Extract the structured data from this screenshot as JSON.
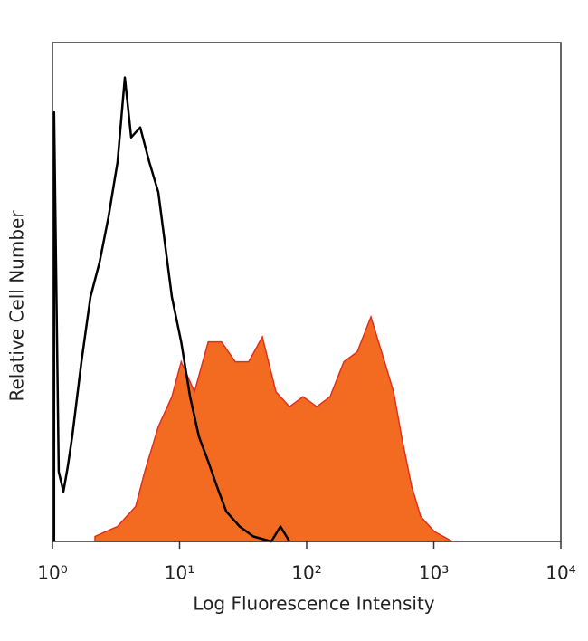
{
  "chart_data": {
    "type": "histogram-overlay",
    "x_label": "Log Fluorescence Intensity",
    "y_label": "Relative Cell Number",
    "log_x": true,
    "xlim": [
      1,
      10000
    ],
    "xticks": [
      {
        "value": 1,
        "label": "10⁰"
      },
      {
        "value": 10,
        "label": "10¹"
      },
      {
        "value": 100,
        "label": "10²"
      },
      {
        "value": 1000,
        "label": "10³"
      },
      {
        "value": 10000,
        "label": "10⁴"
      }
    ],
    "ylim": [
      0,
      100
    ],
    "series": [
      {
        "style": "area",
        "color": "#f26b21",
        "edge_color": "#e0301e",
        "x": [
          2.16,
          3.25,
          4.52,
          5.32,
          6.8,
          8.7,
          10.3,
          13.1,
          16.8,
          21.4,
          27.4,
          35.0,
          44.8,
          57.3,
          73.3,
          93.7,
          120,
          153,
          196,
          250,
          320,
          410,
          482,
          568,
          670,
          789,
          1009,
          1400
        ],
        "values": [
          1,
          3,
          7,
          14,
          23,
          29,
          36,
          30,
          40,
          40,
          36,
          36,
          41,
          30,
          27,
          29,
          27,
          29,
          36,
          38,
          45,
          36,
          30,
          20,
          11,
          5,
          2,
          0
        ]
      },
      {
        "style": "line",
        "color": "#000000",
        "x": [
          1.03,
          1.12,
          1.22,
          1.32,
          1.43,
          1.69,
          1.99,
          2.35,
          2.76,
          3.25,
          3.71,
          4.16,
          4.9,
          5.78,
          6.8,
          7.38,
          8.7,
          10.3,
          12.1,
          14.2,
          16.8,
          19.7,
          23.3,
          29.7,
          38.0,
          52.7,
          62.2,
          73.3
        ],
        "values": [
          86,
          14,
          10,
          15,
          21,
          36,
          49,
          56,
          65,
          76,
          93,
          81,
          83,
          76,
          70,
          63,
          49,
          40,
          29,
          21,
          16,
          11,
          6,
          3,
          1,
          0,
          3,
          0
        ]
      }
    ]
  }
}
